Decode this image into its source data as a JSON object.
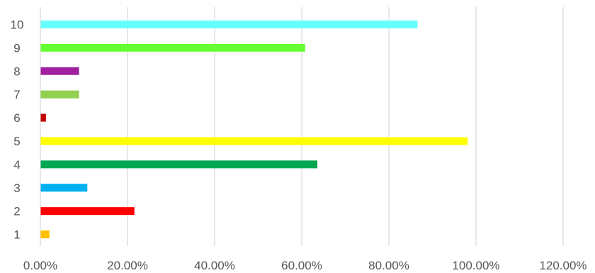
{
  "chart_data": {
    "type": "bar",
    "orientation": "horizontal",
    "title": "",
    "xlabel": "",
    "ylabel": "",
    "categories": [
      "1",
      "2",
      "3",
      "4",
      "5",
      "6",
      "7",
      "8",
      "9",
      "10"
    ],
    "values": [
      0.02,
      0.215,
      0.107,
      0.635,
      0.98,
      0.012,
      0.088,
      0.088,
      0.607,
      0.865
    ],
    "colors": [
      "#ffc000",
      "#ff0000",
      "#00b0f0",
      "#00a651",
      "#ffff00",
      "#c00000",
      "#92d050",
      "#a020a0",
      "#66ff33",
      "#66ffff"
    ],
    "xlim": [
      0,
      1.2
    ],
    "x_ticks": [
      "0.00%",
      "20.00%",
      "40.00%",
      "60.00%",
      "80.00%",
      "100.00%",
      "120.00%"
    ],
    "grid": "vertical",
    "legend": "none"
  }
}
